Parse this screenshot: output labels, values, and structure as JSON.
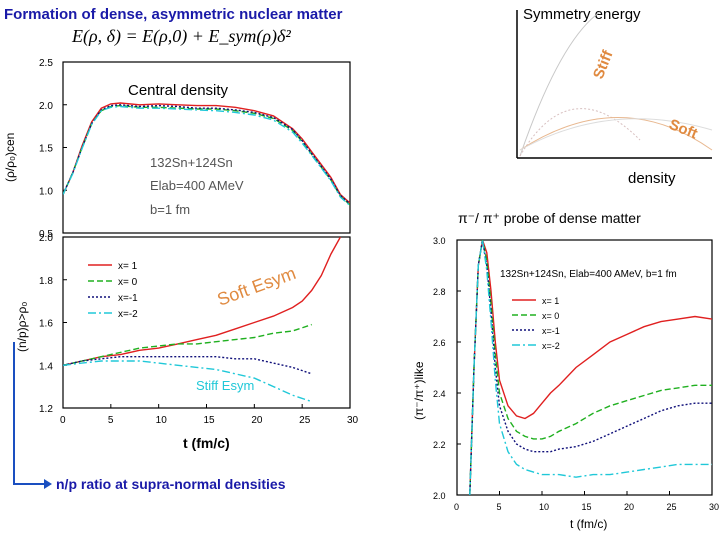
{
  "header": {
    "title": "Formation of dense, asymmetric nuclear matter",
    "formula": "E(ρ, δ) = E(ρ,0) + E_sym(ρ)δ²"
  },
  "symmetry_inset": {
    "title": "Symmetry energy",
    "stiff_label": "Stiff",
    "soft_label": "Soft",
    "xlabel": "density"
  },
  "probe_title": "π⁻/ π⁺ probe of dense matter",
  "np_note": "n/p ratio at supra-normal densities",
  "colors": {
    "blue_text": "#1a1aa8",
    "orange": "#e08a40",
    "red": "#e02020",
    "green": "#20b020",
    "navy": "#10107a",
    "cyan": "#20c8d8"
  },
  "chart_data": [
    {
      "type": "line",
      "id": "density",
      "ylabel": "(ρ/ρ₀)cen",
      "ylim": [
        0.5,
        2.5
      ],
      "xlim": [
        0,
        30
      ],
      "yticks": [
        "0.5",
        "1.0",
        "1.5",
        "2.0",
        "2.5"
      ],
      "annotation_title": "Central density",
      "annotation_reaction": "132Sn+124Sn",
      "annotation_energy": "Elab=400 AMeV",
      "annotation_b": "b=1 fm",
      "series": [
        {
          "name": "x= 1",
          "color": "#e02020",
          "dash": "",
          "x": [
            0,
            1,
            2,
            3,
            4,
            5,
            6,
            8,
            10,
            12,
            14,
            16,
            18,
            20,
            22,
            24,
            25,
            26,
            27,
            28,
            29,
            30
          ],
          "y": [
            0.95,
            1.2,
            1.52,
            1.8,
            1.96,
            2.01,
            2.02,
            2.0,
            2.01,
            2.0,
            1.99,
            1.99,
            1.97,
            1.93,
            1.87,
            1.72,
            1.6,
            1.45,
            1.3,
            1.15,
            0.95,
            0.85
          ]
        },
        {
          "name": "x= 0",
          "color": "#20b020",
          "dash": "6,3",
          "x": [
            0,
            1,
            2,
            3,
            4,
            5,
            6,
            8,
            10,
            12,
            14,
            16,
            18,
            20,
            22,
            24,
            25,
            26,
            27,
            28,
            29,
            30
          ],
          "y": [
            0.95,
            1.2,
            1.5,
            1.78,
            1.93,
            1.98,
            1.99,
            1.97,
            1.97,
            1.96,
            1.95,
            1.95,
            1.93,
            1.9,
            1.84,
            1.7,
            1.57,
            1.42,
            1.27,
            1.12,
            0.93,
            0.83
          ]
        },
        {
          "name": "x=-1",
          "color": "#10107a",
          "dash": "2,2",
          "x": [
            0,
            1,
            2,
            3,
            4,
            5,
            6,
            8,
            10,
            12,
            14,
            16,
            18,
            20,
            22,
            24,
            25,
            26,
            27,
            28,
            29,
            30
          ],
          "y": [
            0.95,
            1.2,
            1.5,
            1.78,
            1.94,
            1.99,
            2.0,
            1.98,
            1.99,
            1.98,
            1.96,
            1.96,
            1.94,
            1.91,
            1.85,
            1.71,
            1.58,
            1.43,
            1.28,
            1.13,
            0.94,
            0.84
          ]
        },
        {
          "name": "x=-2",
          "color": "#20c8d8",
          "dash": "8,3,2,3",
          "x": [
            0,
            1,
            2,
            3,
            4,
            5,
            6,
            8,
            10,
            12,
            14,
            16,
            18,
            20,
            22,
            24,
            25,
            26,
            27,
            28,
            29,
            30
          ],
          "y": [
            0.95,
            1.19,
            1.49,
            1.77,
            1.93,
            1.97,
            1.98,
            1.96,
            1.96,
            1.95,
            1.94,
            1.93,
            1.91,
            1.88,
            1.82,
            1.68,
            1.55,
            1.41,
            1.26,
            1.11,
            0.92,
            0.82
          ]
        }
      ]
    },
    {
      "type": "line",
      "id": "np_ratio",
      "xlabel": "t (fm/c)",
      "ylabel": "(n/p)ρ>ρ₀",
      "ylim": [
        1.2,
        2.0
      ],
      "xlim": [
        0,
        30
      ],
      "xticks": [
        "0",
        "5",
        "10",
        "15",
        "20",
        "25",
        "30"
      ],
      "yticks": [
        "1.2",
        "1.4",
        "1.6",
        "1.8",
        "2.0"
      ],
      "label_soft": "Soft Esym",
      "label_stiff": "Stiff Esym",
      "series": [
        {
          "name": "x= 1",
          "color": "#e02020",
          "dash": "",
          "x": [
            0,
            2,
            4,
            6,
            8,
            10,
            12,
            14,
            16,
            18,
            20,
            22,
            24,
            25,
            26,
            27,
            28,
            29
          ],
          "y": [
            1.4,
            1.42,
            1.44,
            1.45,
            1.47,
            1.48,
            1.5,
            1.52,
            1.54,
            1.57,
            1.6,
            1.63,
            1.67,
            1.7,
            1.75,
            1.82,
            1.92,
            2.0
          ]
        },
        {
          "name": "x= 0",
          "color": "#20b020",
          "dash": "6,3",
          "x": [
            0,
            2,
            4,
            6,
            8,
            10,
            12,
            14,
            16,
            18,
            20,
            22,
            24,
            26
          ],
          "y": [
            1.4,
            1.42,
            1.44,
            1.46,
            1.48,
            1.49,
            1.5,
            1.5,
            1.51,
            1.52,
            1.53,
            1.55,
            1.56,
            1.59
          ]
        },
        {
          "name": "x=-1",
          "color": "#10107a",
          "dash": "2,2",
          "x": [
            0,
            2,
            4,
            6,
            8,
            10,
            12,
            14,
            16,
            18,
            20,
            22,
            24,
            26
          ],
          "y": [
            1.4,
            1.42,
            1.43,
            1.44,
            1.44,
            1.44,
            1.44,
            1.44,
            1.44,
            1.43,
            1.43,
            1.41,
            1.39,
            1.36
          ]
        },
        {
          "name": "x=-2",
          "color": "#20c8d8",
          "dash": "8,3,2,3",
          "x": [
            0,
            2,
            4,
            6,
            8,
            10,
            12,
            14,
            16,
            18,
            20,
            22,
            24,
            26
          ],
          "y": [
            1.4,
            1.41,
            1.42,
            1.42,
            1.42,
            1.41,
            1.4,
            1.39,
            1.38,
            1.36,
            1.34,
            1.3,
            1.26,
            1.23
          ]
        }
      ]
    },
    {
      "type": "line",
      "id": "pion_ratio",
      "xlabel": "t (fm/c)",
      "ylabel": "(π⁻/π⁺)like",
      "ylim": [
        2.0,
        3.0
      ],
      "xlim": [
        0,
        30
      ],
      "xticks": [
        "0",
        "5",
        "10",
        "15",
        "20",
        "25",
        "30"
      ],
      "yticks": [
        "2.0",
        "2.2",
        "2.4",
        "2.6",
        "2.8",
        "3.0"
      ],
      "annotation": "132Sn+124Sn, Elab=400 AMeV, b=1 fm",
      "series": [
        {
          "name": "x= 1",
          "color": "#e02020",
          "dash": "",
          "x": [
            1.5,
            2,
            2.5,
            3,
            3.5,
            4,
            4.5,
            5,
            6,
            7,
            8,
            9,
            10,
            11,
            12,
            14,
            16,
            18,
            20,
            22,
            24,
            26,
            28,
            30
          ],
          "y": [
            2.0,
            2.5,
            2.9,
            3.0,
            2.95,
            2.8,
            2.6,
            2.45,
            2.35,
            2.31,
            2.3,
            2.32,
            2.36,
            2.4,
            2.43,
            2.5,
            2.55,
            2.6,
            2.63,
            2.66,
            2.68,
            2.69,
            2.7,
            2.69
          ]
        },
        {
          "name": "x= 0",
          "color": "#20b020",
          "dash": "6,3",
          "x": [
            1.5,
            2,
            2.5,
            3,
            3.5,
            4,
            4.5,
            5,
            6,
            7,
            8,
            9,
            10,
            11,
            12,
            14,
            16,
            18,
            20,
            22,
            24,
            26,
            28,
            30
          ],
          "y": [
            2.0,
            2.5,
            2.9,
            3.0,
            2.92,
            2.75,
            2.55,
            2.4,
            2.3,
            2.25,
            2.23,
            2.22,
            2.22,
            2.23,
            2.25,
            2.28,
            2.32,
            2.35,
            2.37,
            2.39,
            2.41,
            2.42,
            2.43,
            2.43
          ]
        },
        {
          "name": "x=-1",
          "color": "#10107a",
          "dash": "2,2",
          "x": [
            1.5,
            2,
            2.5,
            3,
            3.5,
            4,
            4.5,
            5,
            6,
            7,
            8,
            9,
            10,
            11,
            12,
            14,
            16,
            18,
            20,
            22,
            24,
            26,
            28,
            30
          ],
          "y": [
            2.0,
            2.5,
            2.9,
            3.0,
            2.9,
            2.72,
            2.5,
            2.35,
            2.25,
            2.2,
            2.18,
            2.17,
            2.17,
            2.17,
            2.18,
            2.19,
            2.21,
            2.24,
            2.27,
            2.3,
            2.33,
            2.35,
            2.36,
            2.36
          ]
        },
        {
          "name": "x=-2",
          "color": "#20c8d8",
          "dash": "8,3,2,3",
          "x": [
            1.5,
            2,
            2.5,
            3,
            3.5,
            4,
            4.5,
            5,
            6,
            7,
            8,
            9,
            10,
            11,
            12,
            14,
            16,
            18,
            20,
            22,
            24,
            26,
            28,
            30
          ],
          "y": [
            2.0,
            2.5,
            2.9,
            3.0,
            2.88,
            2.68,
            2.45,
            2.28,
            2.17,
            2.12,
            2.1,
            2.09,
            2.08,
            2.08,
            2.08,
            2.07,
            2.08,
            2.08,
            2.09,
            2.1,
            2.11,
            2.12,
            2.12,
            2.12
          ]
        }
      ]
    }
  ]
}
